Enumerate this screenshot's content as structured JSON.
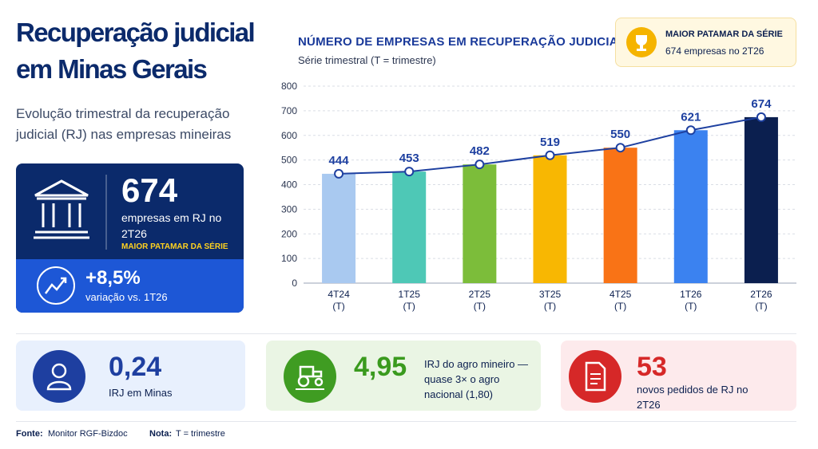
{
  "header": {
    "title": "Recuperação judicial em Minas Gerais",
    "subtitle": "Evolução trimestral da recuperação judicial (RJ) nas empresas mineiras"
  },
  "highlight": {
    "value": "674",
    "label": "empresas em RJ no 2T26",
    "tag": "MAIOR PATAMAR DA SÉRIE",
    "change": "+8,5%",
    "change_label": "variação vs. 1T26"
  },
  "badge": {
    "title": "MAIOR PATAMAR DA SÉRIE",
    "text": "674 empresas no 2T26"
  },
  "chart_data": {
    "type": "bar",
    "title": "NÚMERO DE EMPRESAS EM RECUPERAÇÃO JUDICIAL",
    "subtitle": "Série trimestral (T = trimestre)",
    "categories": [
      "4T24 (T)",
      "1T25 (T)",
      "2T25 (T)",
      "3T25 (T)",
      "4T25 (T)",
      "1T26 (T)",
      "2T26 (T)"
    ],
    "values": [
      444,
      453,
      482,
      519,
      550,
      621,
      674
    ],
    "colors": [
      "#a9c9f0",
      "#4ec8b6",
      "#7cbd3a",
      "#f8b702",
      "#f97316",
      "#3b82f0",
      "#0b1f4f"
    ],
    "line_color": "#1e40a0",
    "ylim": [
      0,
      800
    ],
    "yticks": [
      0,
      100,
      200,
      300,
      400,
      500,
      600,
      700,
      800
    ],
    "grid": true
  },
  "stats": [
    {
      "value": "0,24",
      "label": "IRJ em Minas"
    },
    {
      "value": "4,95",
      "label": "IRJ do agro mineiro — quase 3× o agro nacional (1,80)"
    },
    {
      "value": "53",
      "label": "novos pedidos de RJ no 2T26"
    }
  ],
  "footer": {
    "source_label": "Fonte:",
    "source": "Monitor RGF-Bizdoc",
    "note_label": "Nota:",
    "note": "T = trimestre"
  }
}
